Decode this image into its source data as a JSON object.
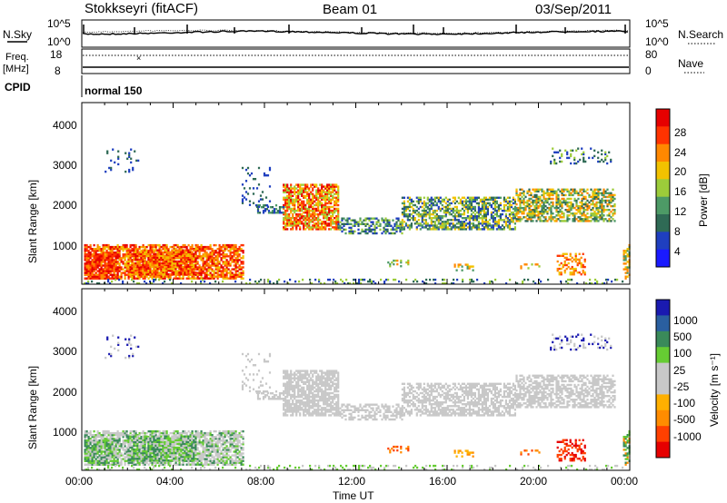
{
  "header": {
    "station": "Stokkseyri (fitACF)",
    "beam": "Beam 01",
    "date": "03/Sep/2011"
  },
  "noise_panel": {
    "left_label": "N.Sky",
    "right_label": "N.Search",
    "left_ticks": [
      "10^5",
      "10^0"
    ],
    "right_ticks": [
      "10^5",
      "10^0"
    ]
  },
  "freq_panel": {
    "left_label_1": "Freq.",
    "left_label_2": "[MHz]",
    "right_label": "Nave",
    "left_ticks": [
      "18",
      "8"
    ],
    "right_ticks": [
      "80",
      "0"
    ]
  },
  "cpid_panel": {
    "label": "CPID",
    "value": "normal 150"
  },
  "colors": {
    "power": [
      "#1a1aff",
      "#1f3fbf",
      "#2f6a55",
      "#4d9a66",
      "#9ccc3a",
      "#f2c200",
      "#ff8800",
      "#ff3300",
      "#e60000"
    ],
    "velocity": [
      "#e60000",
      "#ff4000",
      "#ff8c00",
      "#ffb000",
      "#c8c8c8",
      "#c8c8c8",
      "#66cc33",
      "#3a8a5a",
      "#2a5fa0",
      "#1a1ab0"
    ]
  },
  "chart_data": [
    {
      "type": "heatmap",
      "quantity": "power",
      "ylabel": "Slant Range [km]",
      "yticks": [
        "1000",
        "2000",
        "3000",
        "4000"
      ],
      "ylim": [
        180,
        4600
      ],
      "xlim": [
        0,
        24
      ],
      "colorbar": {
        "label": "Power [dB]",
        "ticks": [
          "28",
          "24",
          "20",
          "16",
          "12",
          "8",
          "4"
        ],
        "range": [
          0,
          32
        ]
      }
    },
    {
      "type": "heatmap",
      "quantity": "velocity",
      "ylabel": "Slant Range [km]",
      "yticks": [
        "1000",
        "2000",
        "3000",
        "4000"
      ],
      "ylim": [
        180,
        4600
      ],
      "xlim": [
        0,
        24
      ],
      "xlabel": "Time UT",
      "xticks": [
        "00:00",
        "04:00",
        "08:00",
        "12:00",
        "16:00",
        "20:00",
        "00:00"
      ],
      "colorbar": {
        "label": "Velocity [m s⁻¹]",
        "ticks": [
          "1000",
          "500",
          "100",
          "25",
          "-25",
          "-100",
          "-500",
          "-1000"
        ]
      }
    }
  ]
}
